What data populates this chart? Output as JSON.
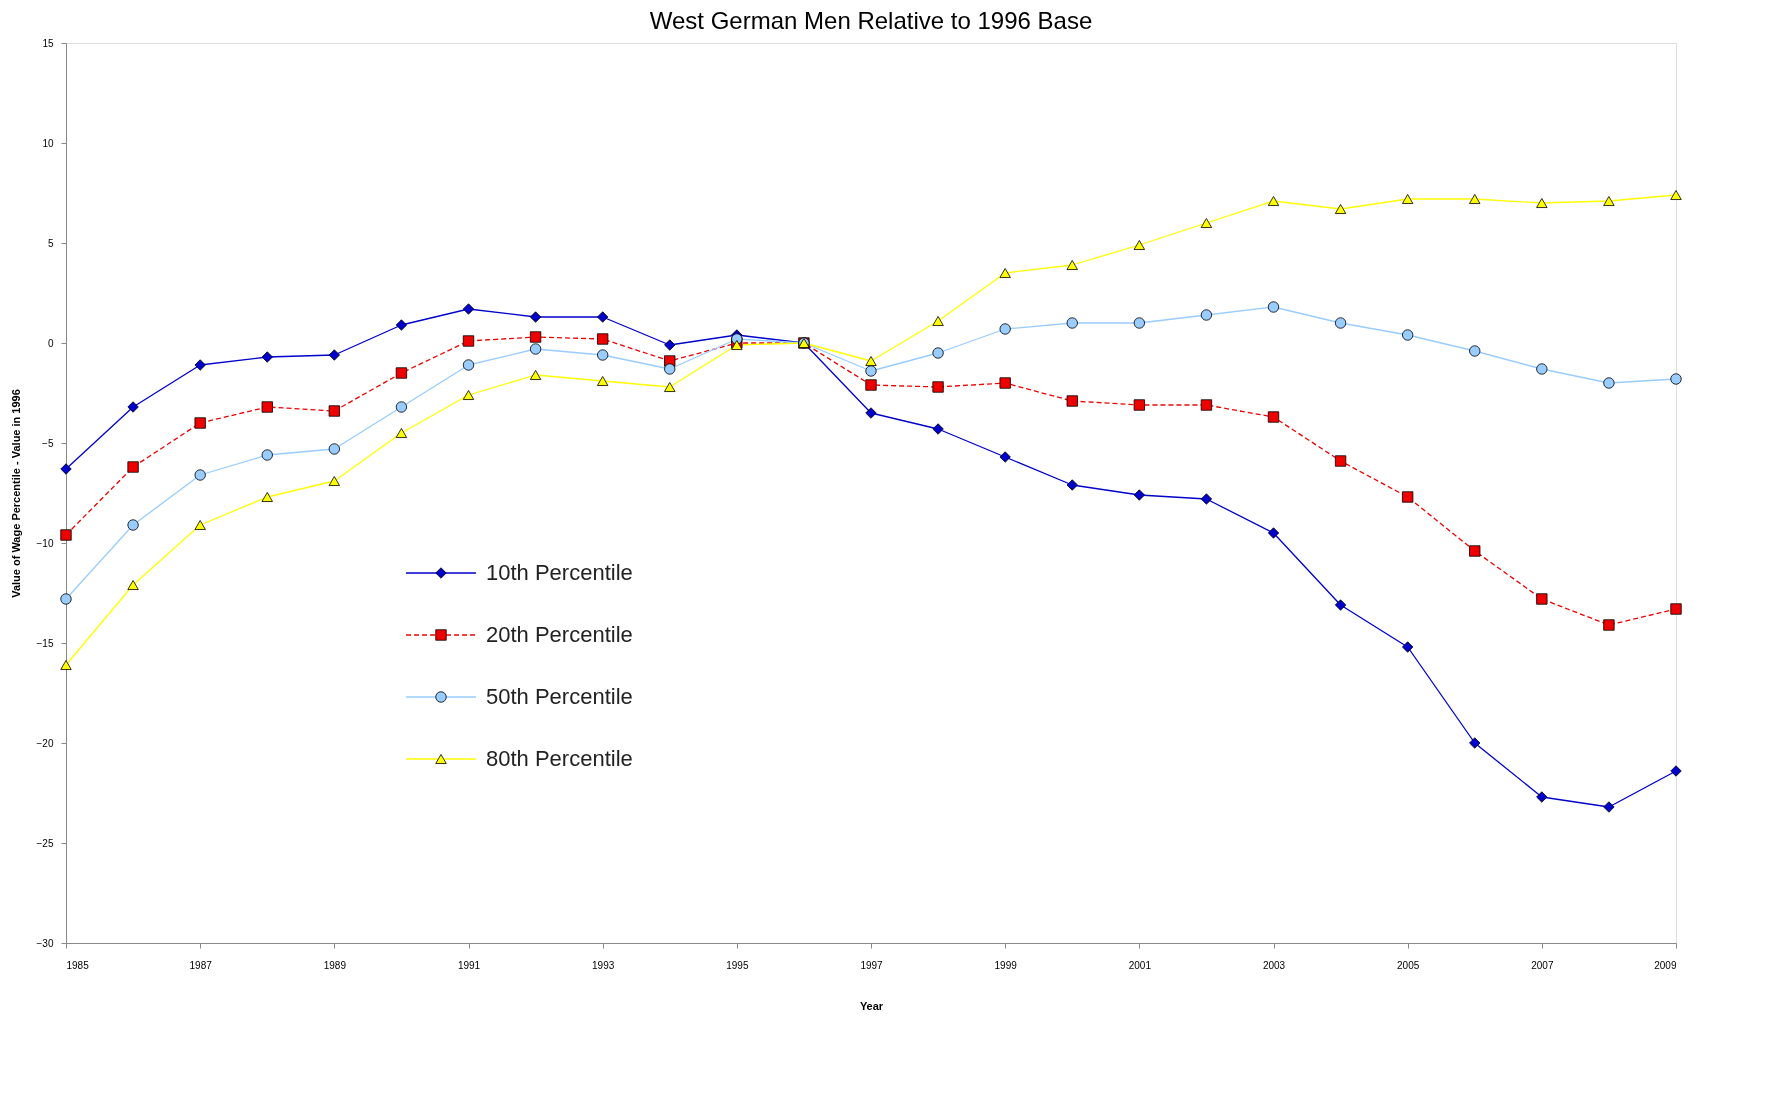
{
  "chart_data": {
    "type": "line",
    "title": "West German Men Relative to 1996 Base",
    "xlabel": "Year",
    "ylabel": "Value of Wage Percentile - Value in 1996",
    "x": [
      1985,
      1986,
      1987,
      1988,
      1989,
      1990,
      1991,
      1992,
      1993,
      1994,
      1995,
      1996,
      1997,
      1998,
      1999,
      2000,
      2001,
      2002,
      2003,
      2004,
      2005,
      2006,
      2007,
      2008,
      2009
    ],
    "series": [
      {
        "name": "10th Percentile",
        "color": "#0000cc",
        "marker": "diamond",
        "line_style": "solid",
        "values": [
          -6.3,
          -3.2,
          -1.1,
          -0.7,
          -0.6,
          0.9,
          1.7,
          1.3,
          1.3,
          -0.1,
          0.4,
          0,
          -3.5,
          -4.3,
          -5.7,
          -7.1,
          -7.6,
          -7.8,
          -9.5,
          -13.1,
          -15.2,
          -20.0,
          -22.7,
          -23.2,
          -21.4
        ]
      },
      {
        "name": "20th Percentile",
        "color": "#ee0000",
        "marker": "square",
        "line_style": "dashed",
        "values": [
          -9.6,
          -6.2,
          -4.0,
          -3.2,
          -3.4,
          -1.5,
          0.1,
          0.3,
          0.2,
          -0.9,
          0,
          0,
          -2.1,
          -2.2,
          -2.0,
          -2.9,
          -3.1,
          -3.1,
          -3.7,
          -5.9,
          -7.7,
          -10.4,
          -12.8,
          -14.1,
          -13.3
        ]
      },
      {
        "name": "50th Percentile",
        "color": "#99ccff",
        "marker": "circle",
        "line_style": "solid",
        "values": [
          -12.8,
          -9.1,
          -6.6,
          -5.6,
          -5.3,
          -3.2,
          -1.1,
          -0.3,
          -0.6,
          -1.3,
          0.2,
          0,
          -1.4,
          -0.5,
          0.7,
          1.0,
          1.0,
          1.4,
          1.8,
          1.0,
          0.4,
          -0.4,
          -1.3,
          -2.0,
          -1.8
        ]
      },
      {
        "name": "80th Percentile",
        "color": "#ffff00",
        "marker": "triangle",
        "line_style": "solid",
        "values": [
          -16.1,
          -12.1,
          -9.1,
          -7.7,
          -6.9,
          -4.5,
          -2.6,
          -1.6,
          -1.9,
          -2.2,
          -0.1,
          0,
          -0.9,
          1.1,
          3.5,
          3.9,
          4.9,
          6.0,
          7.1,
          6.7,
          7.2,
          7.2,
          7.0,
          7.1,
          7.4
        ]
      }
    ],
    "xlim": [
      1985,
      2009
    ],
    "xticks": [
      1985,
      1987,
      1989,
      1991,
      1993,
      1995,
      1997,
      1999,
      2001,
      2003,
      2005,
      2007,
      2009
    ],
    "ylim": [
      -30,
      15
    ],
    "yticks": [
      -30,
      -25,
      -20,
      -15,
      -10,
      -5,
      0,
      5,
      10,
      15
    ],
    "grid": false,
    "legend": "left"
  }
}
